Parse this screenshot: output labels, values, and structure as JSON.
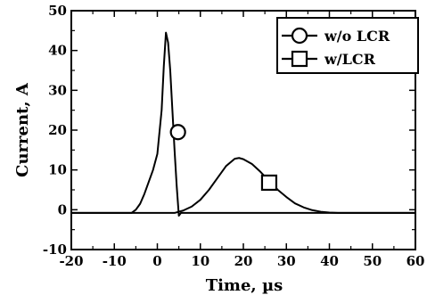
{
  "chart_data": {
    "type": "line",
    "title": "",
    "xlabel": "Time, µs",
    "ylabel": "Current, A",
    "xlim": [
      -20,
      60
    ],
    "ylim": [
      -10,
      50
    ],
    "xticks": [
      -20,
      -10,
      0,
      10,
      20,
      30,
      40,
      50,
      60
    ],
    "yticks": [
      -10,
      0,
      10,
      20,
      30,
      40,
      50
    ],
    "grid": false,
    "legend_position": "top-right",
    "series": [
      {
        "name": "w/o LCR",
        "marker": "circle",
        "marker_at": [
          4.8,
          19.5
        ],
        "color": "#000000",
        "x": [
          -20,
          -6,
          -5,
          -4,
          -3,
          -2,
          -1,
          0,
          1,
          1.5,
          2,
          2.5,
          3,
          3.5,
          4,
          4.5,
          5,
          5.5,
          6,
          10,
          20,
          30,
          40,
          50,
          60
        ],
        "y": [
          -0.8,
          -0.8,
          0,
          1.5,
          4,
          7,
          10,
          14,
          25,
          36,
          44.5,
          42,
          35,
          25,
          15,
          6,
          -1.5,
          -0.8,
          -0.8,
          -0.8,
          -0.8,
          -0.8,
          -0.8,
          -0.8,
          -0.8
        ]
      },
      {
        "name": "w/LCR",
        "marker": "square",
        "marker_at": [
          26,
          6.8
        ],
        "color": "#000000",
        "x": [
          -20,
          0,
          4,
          6,
          8,
          10,
          12,
          14,
          16,
          18,
          19,
          20,
          22,
          24,
          26,
          28,
          30,
          32,
          34,
          36,
          38,
          40,
          42,
          60
        ],
        "y": [
          -0.8,
          -0.8,
          -0.8,
          -0.2,
          0.8,
          2.5,
          5,
          8,
          11,
          12.8,
          13,
          12.7,
          11.5,
          9.5,
          7.2,
          5,
          3.2,
          1.6,
          0.6,
          -0.1,
          -0.5,
          -0.7,
          -0.8,
          -0.8
        ]
      }
    ]
  }
}
